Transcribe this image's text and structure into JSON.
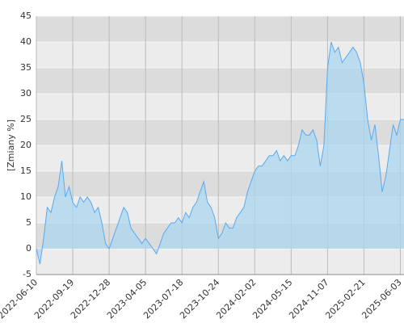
{
  "chart_data": {
    "type": "area",
    "y_label": "[Zmiany %]",
    "categories": [
      "2022-06-10",
      null,
      null,
      null,
      null,
      null,
      null,
      null,
      null,
      null,
      "2022-09-19",
      null,
      null,
      null,
      null,
      null,
      null,
      null,
      null,
      null,
      "2022-12-28",
      null,
      null,
      null,
      null,
      null,
      null,
      null,
      null,
      null,
      "2023-04-05",
      null,
      null,
      null,
      null,
      null,
      null,
      null,
      null,
      null,
      "2023-07-18",
      null,
      null,
      null,
      null,
      null,
      null,
      null,
      null,
      null,
      "2023-10-24",
      null,
      null,
      null,
      null,
      null,
      null,
      null,
      null,
      null,
      "2024-02-02",
      null,
      null,
      null,
      null,
      null,
      null,
      null,
      null,
      null,
      "2024-05-15",
      null,
      null,
      null,
      null,
      null,
      null,
      null,
      null,
      null,
      "2024-11-07",
      null,
      null,
      null,
      null,
      null,
      null,
      null,
      null,
      null,
      "2025-02-21",
      null,
      null,
      null,
      null,
      null,
      null,
      null,
      null,
      null,
      "2025-06-03",
      null
    ],
    "values": [
      0,
      -3,
      2,
      8,
      7,
      10,
      12,
      17,
      10,
      12,
      9,
      8,
      10,
      9,
      10,
      9,
      7,
      8,
      5,
      1,
      0,
      2,
      4,
      6,
      8,
      7,
      4,
      3,
      2,
      1,
      2,
      1,
      0,
      -1,
      1,
      3,
      4,
      5,
      5,
      6,
      5,
      7,
      6,
      8,
      9,
      11,
      13,
      9,
      8,
      6,
      2,
      3,
      5,
      4,
      4,
      6,
      7,
      8,
      11,
      13,
      15,
      16,
      16,
      17,
      18,
      18,
      19,
      17,
      18,
      17,
      18,
      18,
      20,
      23,
      22,
      22,
      23,
      21,
      16,
      20,
      35,
      40,
      38,
      39,
      36,
      37,
      38,
      39,
      38,
      36,
      32,
      25,
      21,
      24,
      18,
      11,
      14,
      19,
      24,
      22,
      25,
      25
    ],
    "line_color": "#5aaaee",
    "fill_color": "#a9d7ef",
    "ylim": [
      -5,
      45
    ],
    "yticks": [
      -5,
      0,
      5,
      10,
      15,
      20,
      25,
      30,
      35,
      40,
      45
    ],
    "grid": true
  }
}
